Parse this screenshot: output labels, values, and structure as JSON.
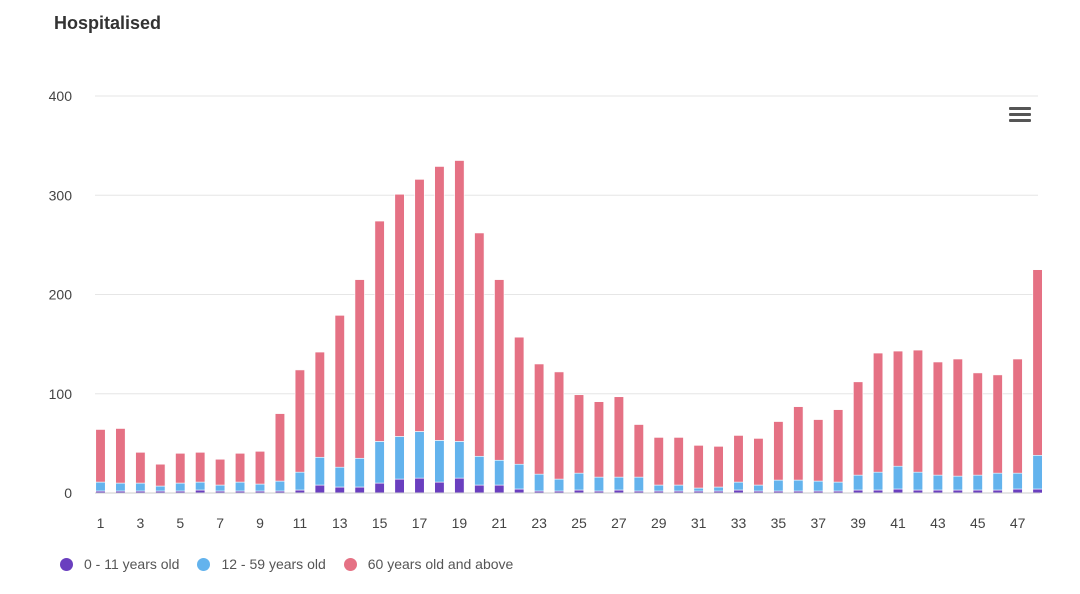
{
  "chart_data": {
    "type": "bar",
    "stacked": true,
    "title": "Hospitalised",
    "xlabel": "",
    "ylabel": "",
    "ylim": [
      0,
      400
    ],
    "yticks": [
      0,
      100,
      200,
      300,
      400
    ],
    "grid": true,
    "legend_position": "bottom-left",
    "categories": [
      "1",
      "2",
      "3",
      "4",
      "5",
      "6",
      "7",
      "8",
      "9",
      "10",
      "11",
      "12",
      "13",
      "14",
      "15",
      "16",
      "17",
      "18",
      "19",
      "20",
      "21",
      "22",
      "23",
      "24",
      "25",
      "26",
      "27",
      "28",
      "29",
      "30",
      "31",
      "32",
      "33",
      "34",
      "35",
      "36",
      "37",
      "38",
      "39",
      "40",
      "41",
      "42",
      "43",
      "44",
      "45",
      "46",
      "47",
      "48"
    ],
    "xtick_labels": [
      "1",
      "",
      "3",
      "",
      "5",
      "",
      "7",
      "",
      "9",
      "",
      "11",
      "",
      "13",
      "",
      "15",
      "",
      "17",
      "",
      "19",
      "",
      "21",
      "",
      "23",
      "",
      "25",
      "",
      "27",
      "",
      "29",
      "",
      "31",
      "",
      "33",
      "",
      "35",
      "",
      "37",
      "",
      "39",
      "",
      "41",
      "",
      "43",
      "",
      "45",
      "",
      "47",
      ""
    ],
    "series": [
      {
        "name": "0 - 11 years old",
        "color": "#6a3fbf",
        "values": [
          2,
          2,
          2,
          2,
          2,
          3,
          2,
          2,
          2,
          2,
          3,
          8,
          6,
          6,
          10,
          14,
          15,
          11,
          15,
          8,
          8,
          4,
          2,
          2,
          3,
          2,
          3,
          2,
          2,
          2,
          2,
          2,
          3,
          2,
          2,
          2,
          2,
          2,
          3,
          3,
          4,
          3,
          3,
          3,
          3,
          3,
          4,
          4
        ]
      },
      {
        "name": "12 - 59 years old",
        "color": "#63b3ed",
        "values": [
          9,
          8,
          8,
          5,
          8,
          8,
          6,
          9,
          7,
          10,
          18,
          28,
          20,
          29,
          42,
          43,
          47,
          42,
          37,
          29,
          25,
          25,
          17,
          12,
          17,
          14,
          13,
          14,
          6,
          6,
          3,
          4,
          8,
          6,
          11,
          11,
          10,
          9,
          15,
          18,
          23,
          18,
          15,
          14,
          15,
          17,
          16,
          34
        ]
      },
      {
        "name": "60 years old and above",
        "color": "#e57184",
        "values": [
          53,
          55,
          31,
          22,
          30,
          30,
          26,
          29,
          33,
          68,
          103,
          106,
          153,
          180,
          222,
          244,
          254,
          276,
          283,
          225,
          182,
          128,
          111,
          108,
          79,
          76,
          81,
          53,
          48,
          48,
          43,
          41,
          47,
          47,
          59,
          74,
          62,
          73,
          94,
          120,
          116,
          123,
          114,
          118,
          103,
          99,
          115,
          187
        ]
      }
    ]
  },
  "toolbar": {
    "menu_icon": "hamburger-menu-icon"
  }
}
